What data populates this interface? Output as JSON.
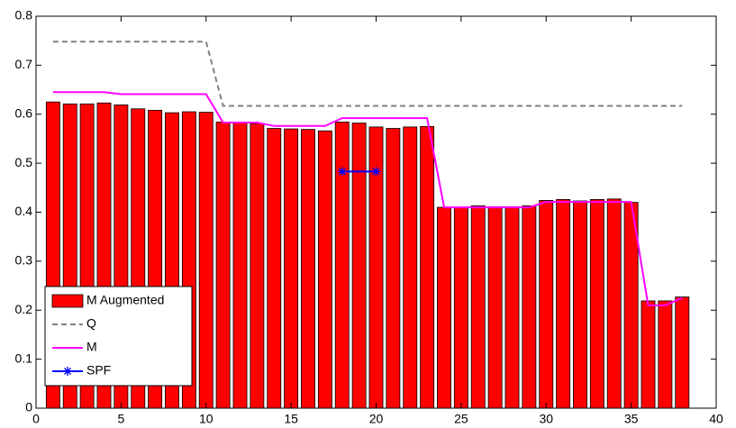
{
  "chart_data": {
    "type": "bar",
    "x": [
      1,
      2,
      3,
      4,
      5,
      6,
      7,
      8,
      9,
      10,
      11,
      12,
      13,
      14,
      15,
      16,
      17,
      18,
      19,
      20,
      21,
      22,
      23,
      24,
      25,
      26,
      27,
      28,
      29,
      30,
      31,
      32,
      33,
      34,
      35,
      36,
      37,
      38
    ],
    "series": [
      {
        "name": "M Augmented",
        "type": "bar",
        "color": "#ff0000",
        "values": [
          0.625,
          0.621,
          0.621,
          0.623,
          0.619,
          0.611,
          0.608,
          0.603,
          0.605,
          0.604,
          0.584,
          0.583,
          0.581,
          0.571,
          0.57,
          0.569,
          0.566,
          0.584,
          0.582,
          0.574,
          0.571,
          0.574,
          0.575,
          0.41,
          0.409,
          0.413,
          0.411,
          0.411,
          0.413,
          0.424,
          0.426,
          0.423,
          0.426,
          0.427,
          0.42,
          0.219,
          0.219,
          0.227
        ]
      },
      {
        "name": "Q",
        "type": "line",
        "color": "#808080",
        "dashed": true,
        "values": [
          0.748,
          0.748,
          0.748,
          0.748,
          0.748,
          0.748,
          0.748,
          0.748,
          0.748,
          0.748,
          0.617,
          0.617,
          0.617,
          0.617,
          0.617,
          0.617,
          0.617,
          0.617,
          0.617,
          0.617,
          0.617,
          0.617,
          0.617,
          0.617,
          0.617,
          0.617,
          0.617,
          0.617,
          0.617,
          0.617,
          0.617,
          0.617,
          0.617,
          0.617,
          0.617,
          0.617,
          0.617,
          0.617
        ]
      },
      {
        "name": "M",
        "type": "line",
        "color": "#ff00ff",
        "values": [
          0.645,
          0.645,
          0.645,
          0.645,
          0.641,
          0.641,
          0.641,
          0.641,
          0.641,
          0.641,
          0.583,
          0.583,
          0.583,
          0.576,
          0.576,
          0.576,
          0.576,
          0.592,
          0.592,
          0.592,
          0.592,
          0.592,
          0.592,
          0.41,
          0.41,
          0.41,
          0.41,
          0.41,
          0.41,
          0.421,
          0.421,
          0.421,
          0.421,
          0.421,
          0.421,
          0.21,
          0.21,
          0.225
        ]
      },
      {
        "name": "SPF",
        "type": "line",
        "color": "#0000ff",
        "marker": "star",
        "x": [
          18,
          20
        ],
        "values": [
          0.483,
          0.483
        ]
      }
    ],
    "xlim": [
      0,
      40
    ],
    "xticks": [
      0,
      5,
      10,
      15,
      20,
      25,
      30,
      35,
      40
    ],
    "ylim": [
      0,
      0.8
    ],
    "yticks": [
      0,
      0.1,
      0.2,
      0.3,
      0.4,
      0.5,
      0.6,
      0.7,
      0.8
    ],
    "legend": "lower-left"
  }
}
